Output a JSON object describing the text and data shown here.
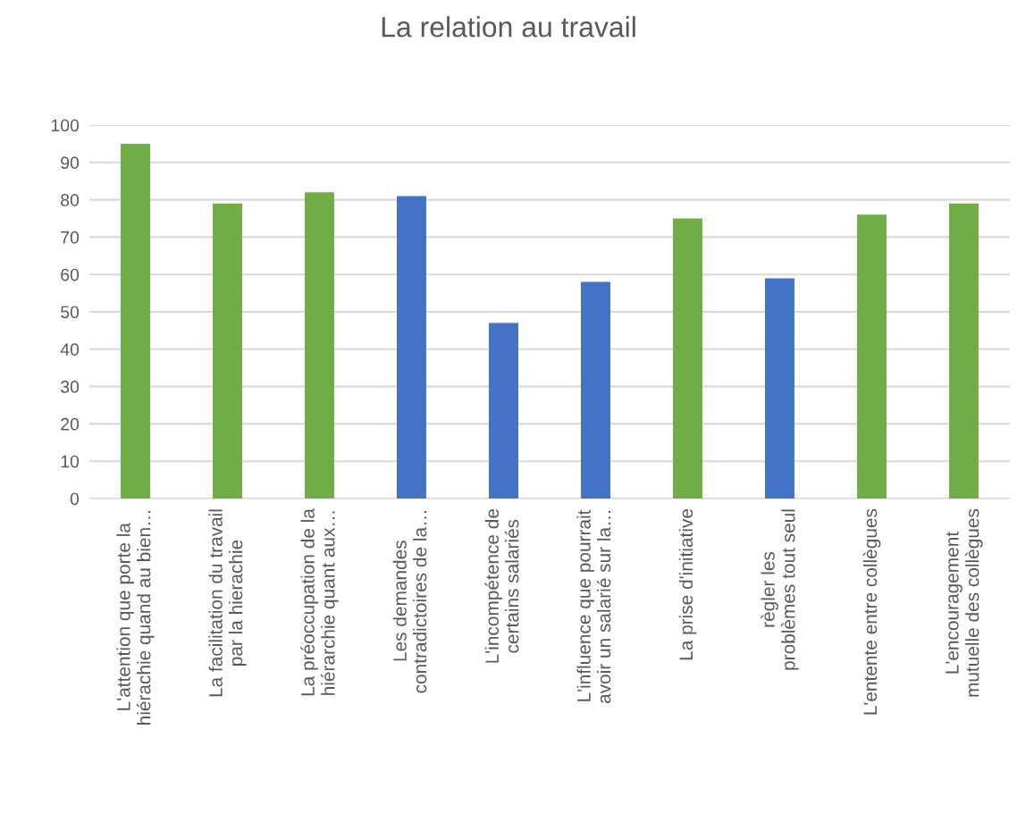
{
  "chart_data": {
    "type": "bar",
    "title": "La relation au travail",
    "categories": [
      "L'attention que porte la\nhiérachie quand au bien…",
      "La facilitation du travail\npar la hierachie",
      "La préoccupation de la\nhiérarchie quant aux…",
      "Les demandes\ncontradictoires de la…",
      "L'incompétence de\ncertains salariés",
      "L'influence que pourrait\navoir un salarié sur la…",
      "La prise d'initiative",
      "règler les\nproblèmes tout seul",
      "L'entente entre collègues",
      "L'encouragement\nmutuelle des collègues"
    ],
    "values": [
      95,
      79,
      82,
      81,
      47,
      58,
      75,
      59,
      76,
      79
    ],
    "colors": [
      "#70ad47",
      "#70ad47",
      "#70ad47",
      "#4472c4",
      "#4472c4",
      "#4472c4",
      "#70ad47",
      "#4472c4",
      "#70ad47",
      "#70ad47"
    ],
    "ylim": [
      0,
      100
    ],
    "yticks": [
      0,
      10,
      20,
      30,
      40,
      50,
      60,
      70,
      80,
      90,
      100
    ],
    "grid": "y"
  }
}
